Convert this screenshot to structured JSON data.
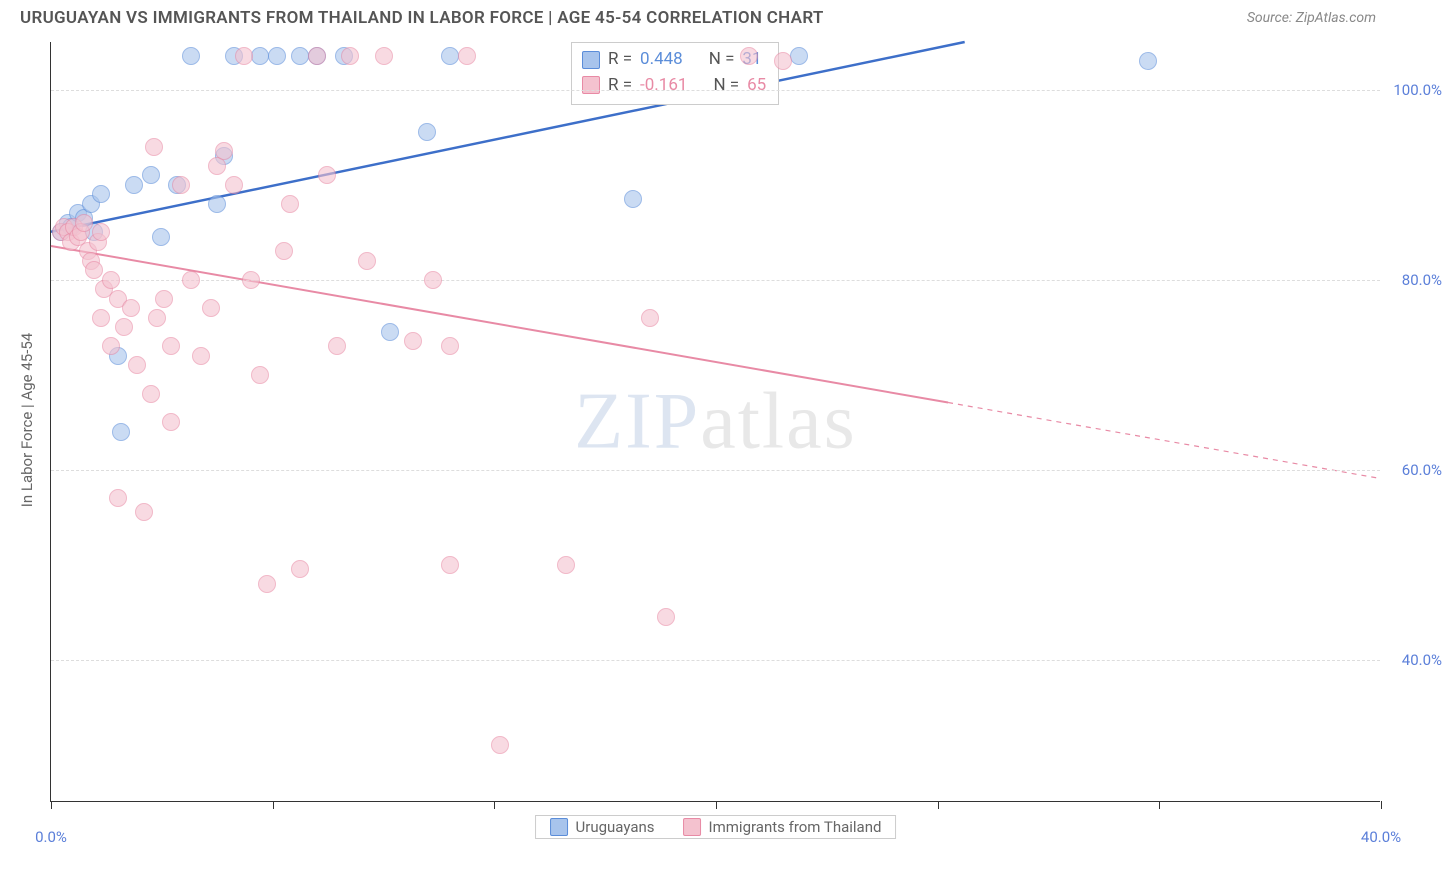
{
  "chart": {
    "type": "scatter",
    "title": "URUGUAYAN VS IMMIGRANTS FROM THAILAND IN LABOR FORCE | AGE 45-54 CORRELATION CHART",
    "source": "Source: ZipAtlas.com",
    "y_axis_label": "In Labor Force | Age 45-54",
    "watermark_a": "ZIP",
    "watermark_b": "atlas",
    "xlim": [
      0,
      40
    ],
    "ylim": [
      25,
      105
    ],
    "y_ticks": [
      40,
      60,
      80,
      100
    ],
    "y_tick_labels": [
      "40.0%",
      "60.0%",
      "80.0%",
      "100.0%"
    ],
    "x_ticks": [
      0,
      6.67,
      13.33,
      20,
      26.67,
      33.33,
      40
    ],
    "x_tick_labels_shown": {
      "0": "0.0%",
      "40": "40.0%"
    },
    "series": [
      {
        "name": "Uruguayans",
        "color_fill": "#a8c4ec",
        "color_stroke": "#5b8dd9",
        "css_class": "point-blue",
        "R": "0.448",
        "N": "31",
        "trend": {
          "x1": 0,
          "y1": 85,
          "x2": 27.5,
          "y2": 105,
          "stroke": "#3d6fc9",
          "width": 2.5,
          "dash_after": 27.5
        },
        "points": [
          [
            0.3,
            85
          ],
          [
            0.5,
            86
          ],
          [
            0.6,
            85.5
          ],
          [
            0.8,
            87
          ],
          [
            1.0,
            86.5
          ],
          [
            1.2,
            88
          ],
          [
            1.3,
            85
          ],
          [
            1.5,
            89
          ],
          [
            2.0,
            72
          ],
          [
            2.1,
            64
          ],
          [
            2.5,
            90
          ],
          [
            3.0,
            91
          ],
          [
            3.3,
            84.5
          ],
          [
            3.8,
            90
          ],
          [
            4.2,
            103.5
          ],
          [
            5.0,
            88
          ],
          [
            5.2,
            93
          ],
          [
            5.5,
            103.5
          ],
          [
            6.3,
            103.5
          ],
          [
            6.8,
            103.5
          ],
          [
            7.5,
            103.5
          ],
          [
            8.0,
            103.5
          ],
          [
            8.8,
            103.5
          ],
          [
            11.3,
            95.5
          ],
          [
            12.0,
            103.5
          ],
          [
            10.2,
            74.5
          ],
          [
            17.5,
            88.5
          ],
          [
            22.5,
            103.5
          ],
          [
            33.0,
            103
          ]
        ]
      },
      {
        "name": "Immigrants from Thailand",
        "color_fill": "#f4c2cf",
        "color_stroke": "#e88aa5",
        "css_class": "point-pink",
        "R": "-0.161",
        "N": "65",
        "trend": {
          "x1": 0,
          "y1": 83.5,
          "x2": 27,
          "y2": 67,
          "stroke": "#e88aa5",
          "width": 2,
          "dash_after": 27,
          "x2_dash": 40,
          "y2_dash": 59
        },
        "points": [
          [
            0.3,
            85
          ],
          [
            0.4,
            85.5
          ],
          [
            0.5,
            85
          ],
          [
            0.6,
            84
          ],
          [
            0.7,
            85.5
          ],
          [
            0.8,
            84.5
          ],
          [
            0.9,
            85
          ],
          [
            1.0,
            86
          ],
          [
            1.1,
            83
          ],
          [
            1.2,
            82
          ],
          [
            1.3,
            81
          ],
          [
            1.4,
            84
          ],
          [
            1.5,
            85
          ],
          [
            1.6,
            79
          ],
          [
            1.8,
            80
          ],
          [
            2.0,
            78
          ],
          [
            1.5,
            76
          ],
          [
            1.8,
            73
          ],
          [
            2.0,
            57
          ],
          [
            2.2,
            75
          ],
          [
            2.4,
            77
          ],
          [
            2.6,
            71
          ],
          [
            2.8,
            55.5
          ],
          [
            3.0,
            68
          ],
          [
            3.2,
            76
          ],
          [
            3.4,
            78
          ],
          [
            3.1,
            94
          ],
          [
            3.6,
            73
          ],
          [
            3.9,
            90
          ],
          [
            4.2,
            80
          ],
          [
            4.5,
            72
          ],
          [
            4.8,
            77
          ],
          [
            3.6,
            65
          ],
          [
            5.0,
            92
          ],
          [
            5.2,
            93.5
          ],
          [
            5.5,
            90
          ],
          [
            5.8,
            103.5
          ],
          [
            6.0,
            80
          ],
          [
            6.3,
            70
          ],
          [
            6.5,
            48
          ],
          [
            7.0,
            83
          ],
          [
            7.2,
            88
          ],
          [
            7.5,
            49.5
          ],
          [
            8.0,
            103.5
          ],
          [
            8.3,
            91
          ],
          [
            8.6,
            73
          ],
          [
            9.0,
            103.5
          ],
          [
            9.5,
            82
          ],
          [
            10.0,
            103.5
          ],
          [
            10.9,
            73.5
          ],
          [
            11.5,
            80
          ],
          [
            12.0,
            50
          ],
          [
            12.5,
            103.5
          ],
          [
            12.0,
            73
          ],
          [
            13.5,
            31
          ],
          [
            15.5,
            50
          ],
          [
            18.0,
            76
          ],
          [
            18.5,
            44.5
          ],
          [
            21.0,
            103.5
          ],
          [
            22.0,
            103
          ]
        ]
      }
    ],
    "legend_labels": {
      "R_prefix": "R =",
      "N_prefix": "N ="
    }
  }
}
